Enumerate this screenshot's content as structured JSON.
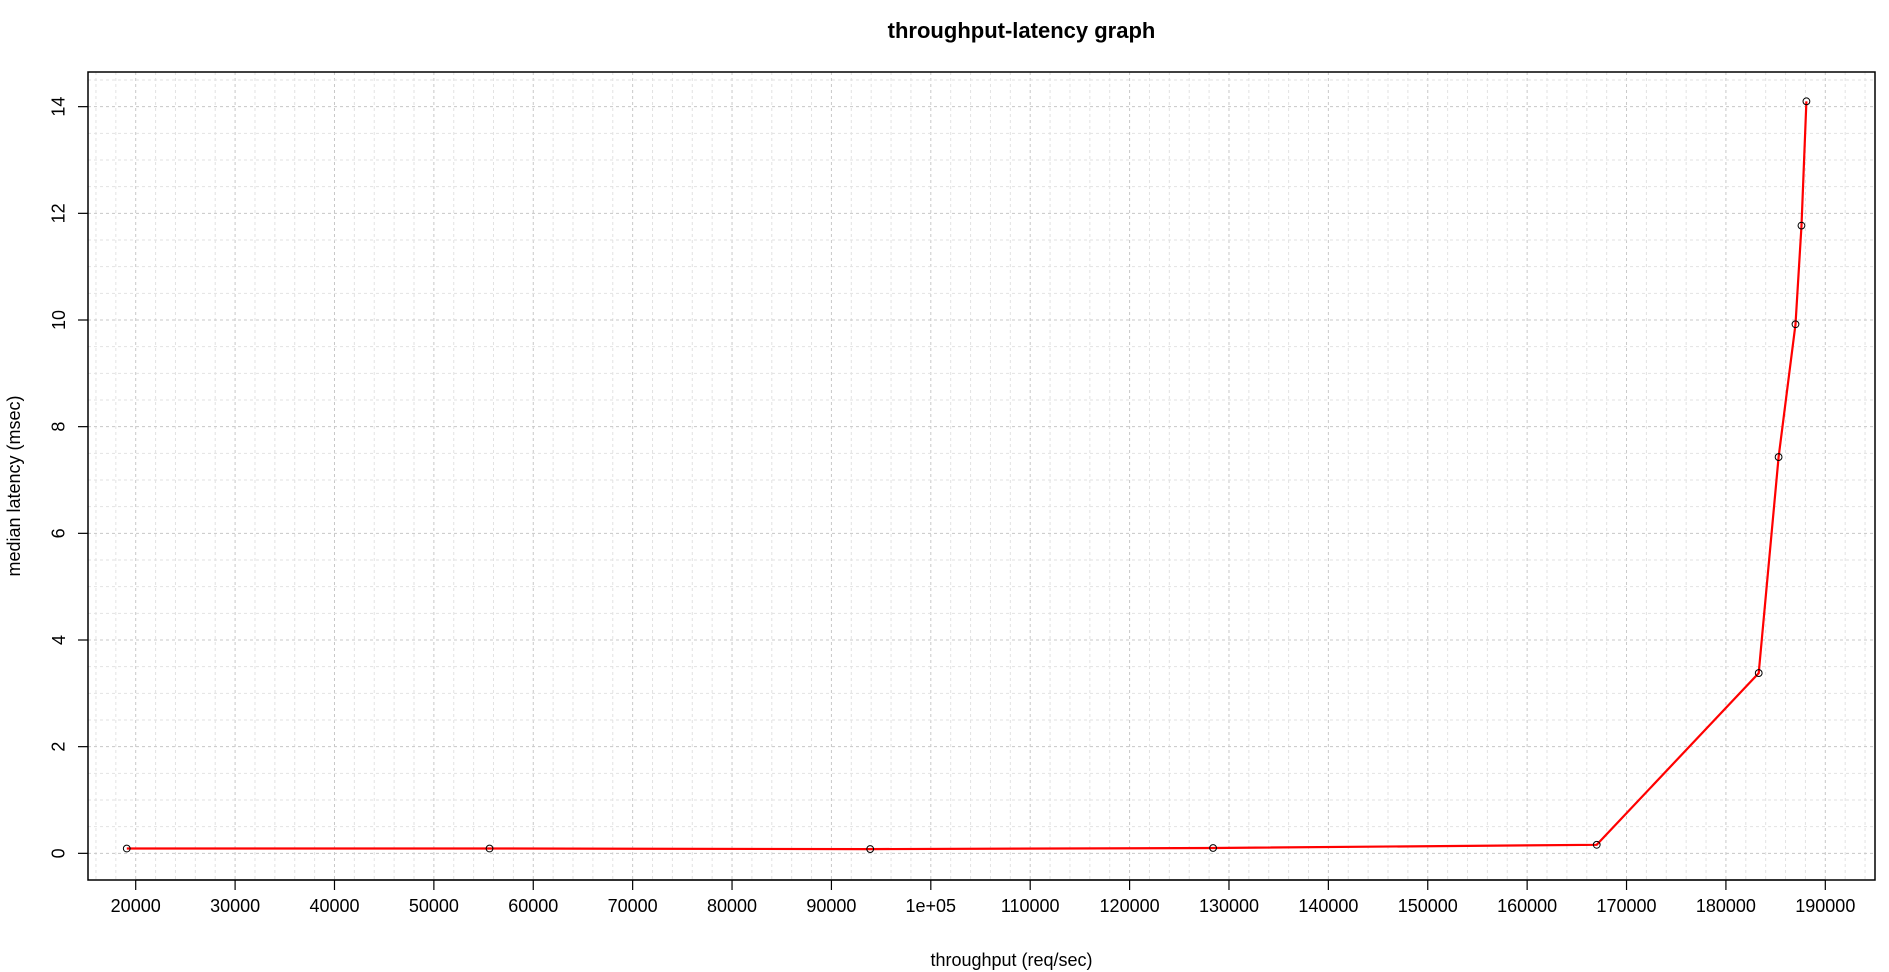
{
  "chart_data": {
    "type": "line",
    "title": "throughput-latency graph",
    "xlabel": "throughput (req/sec)",
    "ylabel": "median latency (msec)",
    "xlim": [
      15200,
      195000
    ],
    "ylim": [
      -0.5,
      14.65
    ],
    "x_ticks": [
      {
        "value": 20000,
        "label": "20000"
      },
      {
        "value": 30000,
        "label": "30000"
      },
      {
        "value": 40000,
        "label": "40000"
      },
      {
        "value": 50000,
        "label": "50000"
      },
      {
        "value": 60000,
        "label": "60000"
      },
      {
        "value": 70000,
        "label": "70000"
      },
      {
        "value": 80000,
        "label": "80000"
      },
      {
        "value": 90000,
        "label": "90000"
      },
      {
        "value": 100000,
        "label": "1e+05"
      },
      {
        "value": 110000,
        "label": "110000"
      },
      {
        "value": 120000,
        "label": "120000"
      },
      {
        "value": 130000,
        "label": "130000"
      },
      {
        "value": 140000,
        "label": "140000"
      },
      {
        "value": 150000,
        "label": "150000"
      },
      {
        "value": 160000,
        "label": "160000"
      },
      {
        "value": 170000,
        "label": "170000"
      },
      {
        "value": 180000,
        "label": "180000"
      },
      {
        "value": 190000,
        "label": "190000"
      }
    ],
    "y_ticks": [
      {
        "value": 0,
        "label": "0"
      },
      {
        "value": 2,
        "label": "2"
      },
      {
        "value": 4,
        "label": "4"
      },
      {
        "value": 6,
        "label": "6"
      },
      {
        "value": 8,
        "label": "8"
      },
      {
        "value": 10,
        "label": "10"
      },
      {
        "value": 12,
        "label": "12"
      },
      {
        "value": 14,
        "label": "14"
      }
    ],
    "grid": true,
    "x_minor_step": 2000,
    "y_minor_step": 0.5,
    "series": [
      {
        "color": "#ff0000",
        "marker_color": "#000000",
        "x": [
          19100,
          55600,
          93900,
          128400,
          167000,
          183300,
          185300,
          187000,
          187600,
          188100
        ],
        "y": [
          0.09,
          0.09,
          0.08,
          0.1,
          0.16,
          3.38,
          7.43,
          9.92,
          11.77,
          14.1
        ]
      }
    ]
  }
}
